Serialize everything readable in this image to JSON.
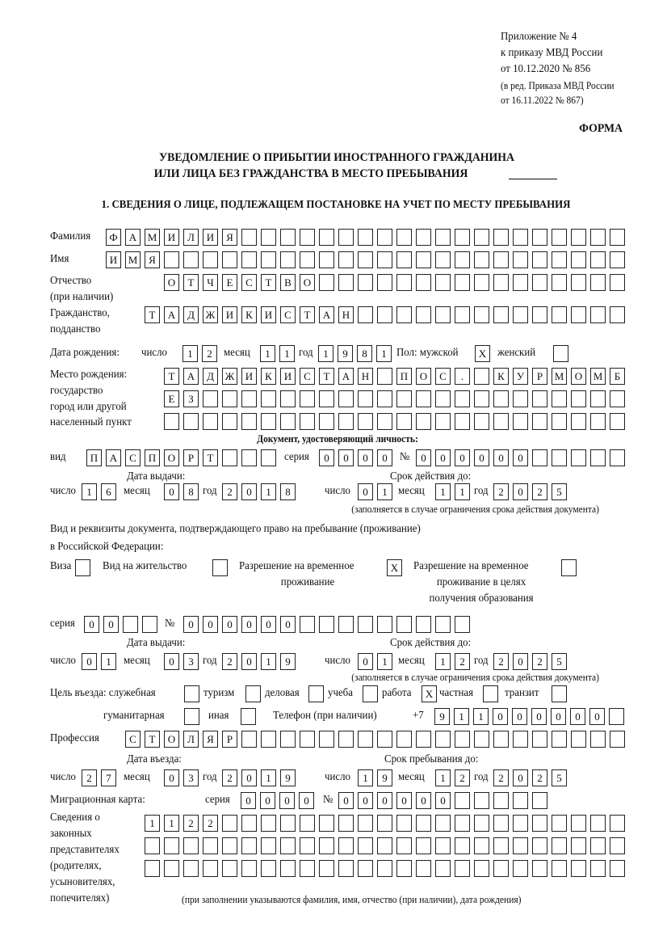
{
  "header": {
    "appendix": "Приложение № 4",
    "order": "к приказу МВД России",
    "order_date": "от 10.12.2020 № 856",
    "edition": "(в ред. Приказа МВД России",
    "edition_date": "от 16.11.2022 № 867)",
    "form_label": "ФОРМА",
    "title_line1": "УВЕДОМЛЕНИЕ О ПРИБЫТИИ ИНОСТРАННОГО ГРАЖДАНИНА",
    "title_line2": "ИЛИ ЛИЦА БЕЗ ГРАЖДАНСТВА В МЕСТО ПРЕБЫВАНИЯ",
    "section1": "1. СВЕДЕНИЯ О ЛИЦЕ, ПОДЛЕЖАЩЕМ ПОСТАНОВКЕ НА УЧЕТ ПО МЕСТУ ПРЕБЫВАНИЯ"
  },
  "labels": {
    "surname": "Фамилия",
    "name": "Имя",
    "patronymic": "Отчество",
    "patronymic_note": "(при наличии)",
    "citizenship": "Гражданство,",
    "citizenship2": "подданство",
    "birth_date": "Дата рождения:",
    "day": "число",
    "month": "месяц",
    "year": "год",
    "sex": "Пол: мужской",
    "female": "женский",
    "birthplace": "Место рождения:",
    "birthplace2": "государство",
    "birthplace3": "город или другой",
    "birthplace4": "населенный пункт",
    "id_doc": "Документ, удостоверяющий личность:",
    "kind": "вид",
    "series": "серия",
    "number": "№",
    "issue_date": "Дата выдачи:",
    "valid_until": "Срок действия до:",
    "valid_note": "(заполняется в случае ограничения срока действия документа)",
    "right_doc1": "Вид и реквизиты документа, подтверждающего право на пребывание (проживание)",
    "right_doc2": "в Российской Федерации:",
    "visa": "Виза",
    "residence": "Вид на жительство",
    "trp1": "Разрешение на временное",
    "trp2": "проживание",
    "trp_edu1": "Разрешение на временное",
    "trp_edu2": "проживание в целях",
    "trp_edu3": "получения образования",
    "purpose": "Цель въезда: служебная",
    "tourism": "туризм",
    "business": "деловая",
    "study": "учеба",
    "work": "работа",
    "private": "частная",
    "transit": "транзит",
    "humanitarian": "гуманитарная",
    "other": "иная",
    "phone": "Телефон (при наличии)",
    "phone_prefix": "+7",
    "profession": "Профессия",
    "entry_date": "Дата въезда:",
    "stay_until": "Срок пребывания до:",
    "migration_card": "Миграционная карта:",
    "reps1": "Сведения о",
    "reps2": "законных",
    "reps3": "представителях",
    "reps4": "(родителях,",
    "reps5": "усыновителях,",
    "reps6": "попечителях)",
    "reps_note": "(при заполнении указываются фамилия, имя, отчество (при наличии), дата рождения)"
  },
  "person": {
    "surname": "ФАМИЛИЯ",
    "name": "ИМЯ",
    "patronymic": "ОТЧЕСТВО",
    "citizenship": "ТАДЖИКИСТАН",
    "birth_day": "12",
    "birth_month": "11",
    "birth_year": "1981",
    "sex_male": "X",
    "sex_female": "",
    "birthplace_1": "ТАДЖИКИСТАН ПОС. КУРМОМБ",
    "birthplace_2": "ЕЗ",
    "birthplace_3": "",
    "profession": "СТОЛЯР",
    "phone": "911000000",
    "purpose": {
      "official": "",
      "tourism": "",
      "business": "",
      "study": "",
      "work": "X",
      "private": "",
      "transit": "",
      "humanitarian": "",
      "other": ""
    }
  },
  "id_document": {
    "kind": "ПАСПОРТ",
    "series": "0000",
    "number": "000000",
    "issue_day": "16",
    "issue_month": "08",
    "issue_year": "2018",
    "valid_day": "01",
    "valid_month": "11",
    "valid_year": "2025"
  },
  "right_document": {
    "visa": "",
    "residence_permit": "",
    "temporary_residence": "X",
    "temporary_residence_edu": "",
    "series": "00",
    "number": "000000",
    "issue_day": "01",
    "issue_month": "03",
    "issue_year": "2019",
    "valid_day": "01",
    "valid_month": "12",
    "valid_year": "2025"
  },
  "stay": {
    "entry_day": "27",
    "entry_month": "03",
    "entry_year": "2019",
    "until_day": "19",
    "until_month": "12",
    "until_year": "2025"
  },
  "migration_card": {
    "series": "0000",
    "number": "000000"
  },
  "legal_representatives": {
    "line1": "1122",
    "line2": "",
    "line3": ""
  }
}
